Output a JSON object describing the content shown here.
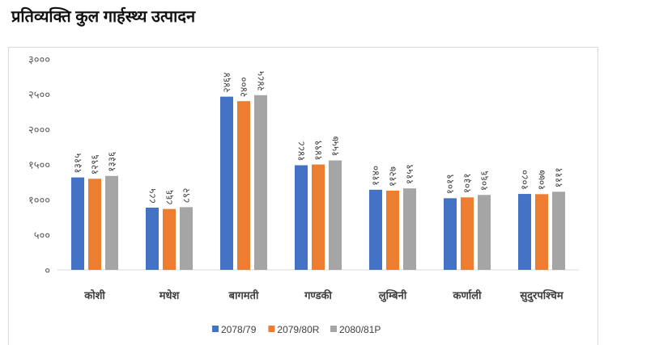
{
  "chart_data": {
    "type": "bar",
    "title": "प्रतिव्यक्ति कुल गार्हस्थ्य उत्पादन",
    "categories": [
      "कोशी",
      "मधेश",
      "बागमती",
      "गण्डकी",
      "लुम्बिनी",
      "कर्णाली",
      "सुदुरपश्चिम"
    ],
    "series": [
      {
        "name": "2078/79",
        "color": "#4472C4",
        "values": [
          1315,
          885,
          2464,
          1488,
          1140,
          1019,
          1080
        ],
        "labels": [
          "१३१५",
          "८८५",
          "२४६४",
          "१४८८",
          "११४०",
          "१०१९",
          "१०८०"
        ]
      },
      {
        "name": "2079/80R",
        "color": "#ED7D31",
        "values": [
          1296,
          866,
          2400,
          1499,
          1127,
          1031,
          1077
        ],
        "labels": [
          "१२९६",
          "८६६",
          "२४००",
          "१४९९",
          "११२७",
          "१०३१",
          "१०७७"
        ]
      },
      {
        "name": "2080/81P",
        "color": "#A5A5A5",
        "values": [
          1336,
          892,
          2485,
          1557,
          1159,
          1066,
          1111
        ],
        "labels": [
          "१३३६",
          "८९२",
          "२४८५",
          "१५५७",
          "११५९",
          "१०६६",
          "११११"
        ]
      }
    ],
    "ylim": [
      0,
      3000
    ],
    "yticks": [
      0,
      500,
      1000,
      1500,
      2000,
      2500,
      3000
    ],
    "ytick_labels": [
      "०",
      "५००",
      "१०००",
      "१५००",
      "२०००",
      "२५००",
      "३०००"
    ],
    "xlabel": "",
    "ylabel": "",
    "grid": false,
    "legend": "bottom"
  }
}
